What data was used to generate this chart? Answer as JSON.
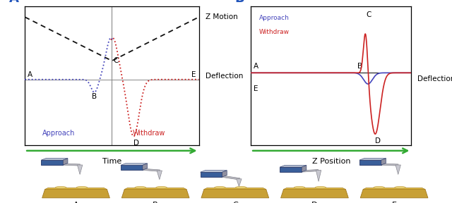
{
  "panel_A": {
    "label": "A",
    "title_right1": "Z Motion",
    "title_right2": "Deflection",
    "approach_label": "Approach",
    "withdraw_label": "Withdraw",
    "approach_color": "#4444bb",
    "withdraw_color": "#cc2222",
    "zmotion_color": "#111111",
    "xlabel": "Time",
    "xlabel_color": "#33aa33"
  },
  "panel_B": {
    "label": "B",
    "title_right": "Deflection",
    "approach_label": "Approach",
    "withdraw_label": "Withdraw",
    "approach_color": "#4444bb",
    "withdraw_color": "#cc2222",
    "xlabel": "Z Position",
    "xlabel_color": "#33aa33"
  },
  "bottom_labels": [
    "A",
    "B",
    "C",
    "D",
    "E"
  ],
  "arrow_color": "#33aa33",
  "bg_color": "#ffffff",
  "bold_label_fontsize": 13
}
